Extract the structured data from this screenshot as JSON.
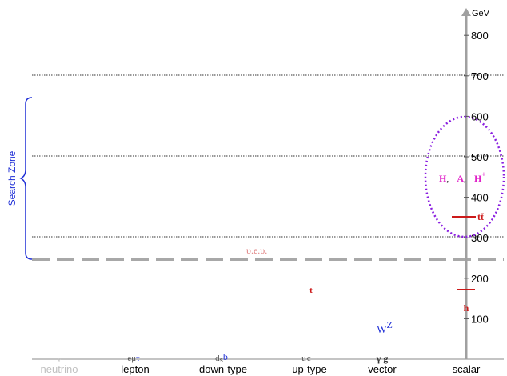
{
  "axis": {
    "unit": "GeV",
    "ticks": [
      "100",
      "200",
      "300",
      "400",
      "500",
      "600",
      "700",
      "800"
    ]
  },
  "categories": [
    "neutrino",
    "lepton",
    "down-type",
    "up-type",
    "vector",
    "scalar"
  ],
  "search_zone": {
    "label": "Search Zone",
    "color": "#1f2fd6"
  },
  "vev": {
    "label": "υ.e.υ."
  },
  "particles": {
    "neutrino": "ν",
    "lepton": {
      "e": "e",
      "mu": "μ",
      "tau": "τ"
    },
    "down": {
      "d": "d",
      "s": "s",
      "b": "b"
    },
    "up": {
      "u": "u",
      "c": "c",
      "t": "t"
    },
    "vector": {
      "gamma": "γ",
      "g": "g",
      "W": "W",
      "Z": "Z"
    },
    "scalar": {
      "h": "h",
      "tt": "tt̄"
    }
  },
  "new_states": {
    "H": "H",
    "A": "A",
    "Hp_base": "H",
    "Hp_sup": "+",
    "sep": ","
  },
  "colors": {
    "red": "#cc1a1a",
    "blue": "#1f2fd6",
    "magenta": "#e020c8",
    "purple": "#8a1fe0",
    "gray": "#9a9a9a"
  }
}
